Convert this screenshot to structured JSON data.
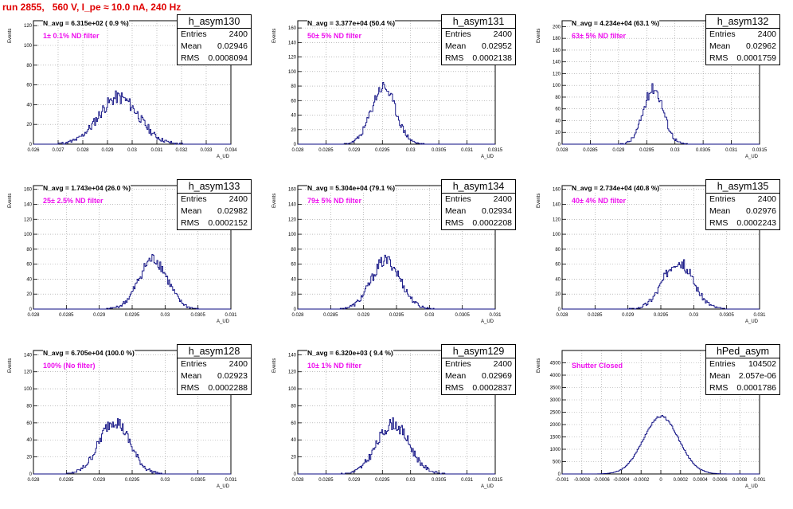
{
  "run_label": "run 2855,   560 V, I_pe ≈ 10.0 nA, 240 Hz",
  "chart_data": [
    {
      "type": "histogram",
      "name": "h_asym130",
      "entries": "2400",
      "mean": "0.02946",
      "rms": "0.0008094",
      "navg": "N_avg = 6.315e+02 ( 0.9 %)",
      "filter": "1± 0.1% ND filter",
      "center": 0.02946,
      "sigma": 0.0008094,
      "xlim": [
        0.026,
        0.034
      ],
      "xticks": [
        "0.026",
        "0.027",
        "0.028",
        "0.029",
        "0.03",
        "0.031",
        "0.032",
        "0.033",
        "0.034"
      ],
      "ylim": [
        0,
        125
      ],
      "yticks": [
        "0",
        "20",
        "40",
        "60",
        "80",
        "100",
        "120"
      ],
      "ytick_values": [
        0,
        20,
        40,
        60,
        80,
        100,
        120
      ],
      "xlabel": "A_UD",
      "ylabel": "Events",
      "seed": 11
    },
    {
      "type": "histogram",
      "name": "h_asym131",
      "entries": "2400",
      "mean": "0.02952",
      "rms": "0.0002138",
      "navg": "N_avg = 3.377e+04 (50.4 %)",
      "filter": "50± 5% ND filter",
      "center": 0.02952,
      "sigma": 0.0002138,
      "xlim": [
        0.028,
        0.0315
      ],
      "xticks": [
        "0.028",
        "0.0285",
        "0.029",
        "0.0295",
        "0.03",
        "0.0305",
        "0.031",
        "0.0315"
      ],
      "ylim": [
        0,
        170
      ],
      "yticks": [
        "0",
        "20",
        "40",
        "60",
        "80",
        "100",
        "120",
        "140",
        "160"
      ],
      "ytick_values": [
        0,
        20,
        40,
        60,
        80,
        100,
        120,
        140,
        160
      ],
      "xlabel": "A_UD",
      "ylabel": "Events",
      "seed": 23
    },
    {
      "type": "histogram",
      "name": "h_asym132",
      "entries": "2400",
      "mean": "0.02962",
      "rms": "0.0001759",
      "navg": "N_avg = 4.234e+04 (63.1 %)",
      "filter": "63± 5% ND filter",
      "center": 0.02962,
      "sigma": 0.0001759,
      "xlim": [
        0.028,
        0.0315
      ],
      "xticks": [
        "0.028",
        "0.0285",
        "0.029",
        "0.0295",
        "0.03",
        "0.0305",
        "0.031",
        "0.0315"
      ],
      "ylim": [
        0,
        210
      ],
      "yticks": [
        "0",
        "20",
        "40",
        "60",
        "80",
        "100",
        "120",
        "140",
        "160",
        "180",
        "200"
      ],
      "ytick_values": [
        0,
        20,
        40,
        60,
        80,
        100,
        120,
        140,
        160,
        180,
        200
      ],
      "xlabel": "A_UD",
      "ylabel": "Events",
      "seed": 37
    },
    {
      "type": "histogram",
      "name": "h_asym133",
      "entries": "2400",
      "mean": "0.02982",
      "rms": "0.0002152",
      "navg": "N_avg = 1.743e+04 (26.0 %)",
      "filter": "25± 2.5% ND filter",
      "center": 0.02982,
      "sigma": 0.0002152,
      "xlim": [
        0.028,
        0.031
      ],
      "xticks": [
        "0.028",
        "0.0285",
        "0.029",
        "0.0295",
        "0.03",
        "0.0305",
        "0.031"
      ],
      "ylim": [
        0,
        165
      ],
      "yticks": [
        "0",
        "20",
        "40",
        "60",
        "80",
        "100",
        "120",
        "140",
        "160"
      ],
      "ytick_values": [
        0,
        20,
        40,
        60,
        80,
        100,
        120,
        140,
        160
      ],
      "xlabel": "A_UD",
      "ylabel": "Events",
      "seed": 41
    },
    {
      "type": "histogram",
      "name": "h_asym134",
      "entries": "2400",
      "mean": "0.02934",
      "rms": "0.0002208",
      "navg": "N_avg = 5.304e+04 (79.1 %)",
      "filter": "79± 5% ND filter",
      "center": 0.02934,
      "sigma": 0.0002208,
      "xlim": [
        0.028,
        0.031
      ],
      "xticks": [
        "0.028",
        "0.0285",
        "0.029",
        "0.0295",
        "0.03",
        "0.0305",
        "0.031"
      ],
      "ylim": [
        0,
        165
      ],
      "yticks": [
        "0",
        "20",
        "40",
        "60",
        "80",
        "100",
        "120",
        "140",
        "160"
      ],
      "ytick_values": [
        0,
        20,
        40,
        60,
        80,
        100,
        120,
        140,
        160
      ],
      "xlabel": "A_UD",
      "ylabel": "Events",
      "seed": 53
    },
    {
      "type": "histogram",
      "name": "h_asym135",
      "entries": "2400",
      "mean": "0.02976",
      "rms": "0.0002243",
      "navg": "N_avg = 2.734e+04 (40.8 %)",
      "filter": "40± 4% ND filter",
      "center": 0.02976,
      "sigma": 0.0002243,
      "xlim": [
        0.028,
        0.031
      ],
      "xticks": [
        "0.028",
        "0.0285",
        "0.029",
        "0.0295",
        "0.03",
        "0.0305",
        "0.031"
      ],
      "ylim": [
        0,
        165
      ],
      "yticks": [
        "0",
        "20",
        "40",
        "60",
        "80",
        "100",
        "120",
        "140",
        "160"
      ],
      "ytick_values": [
        0,
        20,
        40,
        60,
        80,
        100,
        120,
        140,
        160
      ],
      "xlabel": "A_UD",
      "ylabel": "Events",
      "seed": 67
    },
    {
      "type": "histogram",
      "name": "h_asym128",
      "entries": "2400",
      "mean": "0.02923",
      "rms": "0.0002288",
      "navg": "N_avg = 6.705e+04 (100.0 %)",
      "filter": "100% (No filter)",
      "center": 0.02923,
      "sigma": 0.0002288,
      "xlim": [
        0.028,
        0.031
      ],
      "xticks": [
        "0.028",
        "0.0285",
        "0.029",
        "0.0295",
        "0.03",
        "0.0305",
        "0.031"
      ],
      "ylim": [
        0,
        145
      ],
      "yticks": [
        "0",
        "20",
        "40",
        "60",
        "80",
        "100",
        "120",
        "140"
      ],
      "ytick_values": [
        0,
        20,
        40,
        60,
        80,
        100,
        120,
        140
      ],
      "xlabel": "A_UD",
      "ylabel": "Events",
      "seed": 79
    },
    {
      "type": "histogram",
      "name": "h_asym129",
      "entries": "2400",
      "mean": "0.02969",
      "rms": "0.0002837",
      "navg": "N_avg = 6.320e+03 ( 9.4 %)",
      "filter": "10± 1% ND filter",
      "center": 0.02969,
      "sigma": 0.0002837,
      "xlim": [
        0.028,
        0.0315
      ],
      "xticks": [
        "0.028",
        "0.0285",
        "0.029",
        "0.0295",
        "0.03",
        "0.0305",
        "0.031",
        "0.0315"
      ],
      "ylim": [
        0,
        145
      ],
      "yticks": [
        "0",
        "20",
        "40",
        "60",
        "80",
        "100",
        "120",
        "140"
      ],
      "ytick_values": [
        0,
        20,
        40,
        60,
        80,
        100,
        120,
        140
      ],
      "xlabel": "A_UD",
      "ylabel": "Events",
      "seed": 83
    },
    {
      "type": "histogram",
      "name": "hPed_asym",
      "entries": "104502",
      "mean": "2.057e-06",
      "rms": "0.0001786",
      "navg": "",
      "filter": "Shutter Closed",
      "center": 2.1e-06,
      "sigma": 0.0001786,
      "xlim": [
        -0.001,
        0.001
      ],
      "xticks": [
        "-0.001",
        "-0.0008",
        "-0.0006",
        "-0.0004",
        "-0.0002",
        "0",
        "0.0002",
        "0.0004",
        "0.0006",
        "0.0008",
        "0.001"
      ],
      "ylim": [
        0,
        5000
      ],
      "yticks": [
        "0",
        "500",
        "1000",
        "1500",
        "2000",
        "2500",
        "3000",
        "3500",
        "4000",
        "4500"
      ],
      "ytick_values": [
        0,
        500,
        1000,
        1500,
        2000,
        2500,
        3000,
        3500,
        4000,
        4500
      ],
      "xlabel": "A_UD",
      "ylabel": "Events",
      "seed": 97
    }
  ]
}
